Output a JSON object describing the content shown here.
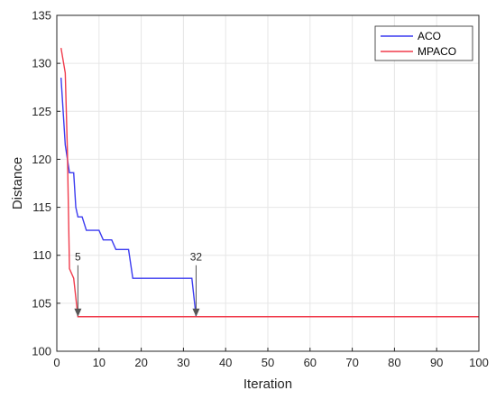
{
  "chart_data": {
    "type": "line",
    "title": "",
    "xlabel": "Iteration",
    "ylabel": "Distance",
    "xlim": [
      0,
      100
    ],
    "ylim": [
      100,
      135
    ],
    "xticks": [
      0,
      10,
      20,
      30,
      40,
      50,
      60,
      70,
      80,
      90,
      100
    ],
    "yticks": [
      100,
      105,
      110,
      115,
      120,
      125,
      130,
      135
    ],
    "grid": true,
    "legend_position": "top-right",
    "series": [
      {
        "name": "ACO",
        "color": "#3b3bf0",
        "points": [
          [
            1,
            128.5
          ],
          [
            1.5,
            125
          ],
          [
            2,
            121.5
          ],
          [
            3,
            118.6
          ],
          [
            4,
            118.6
          ],
          [
            4.5,
            115
          ],
          [
            5,
            114
          ],
          [
            6,
            114
          ],
          [
            7,
            112.6
          ],
          [
            10,
            112.6
          ],
          [
            11,
            111.6
          ],
          [
            13,
            111.6
          ],
          [
            14,
            110.6
          ],
          [
            17,
            110.6
          ],
          [
            18,
            107.6
          ],
          [
            32,
            107.6
          ],
          [
            33,
            103.6
          ],
          [
            100,
            103.6
          ]
        ]
      },
      {
        "name": "MPACO",
        "color": "#f03c4c",
        "points": [
          [
            1,
            131.6
          ],
          [
            2,
            129
          ],
          [
            2.5,
            121
          ],
          [
            3,
            108.6
          ],
          [
            4,
            107.6
          ],
          [
            5,
            103.6
          ],
          [
            100,
            103.6
          ]
        ]
      }
    ],
    "annotations": [
      {
        "label": "5",
        "x": 5,
        "y": 103.6
      },
      {
        "label": "32",
        "x": 33,
        "y": 103.6
      }
    ]
  }
}
